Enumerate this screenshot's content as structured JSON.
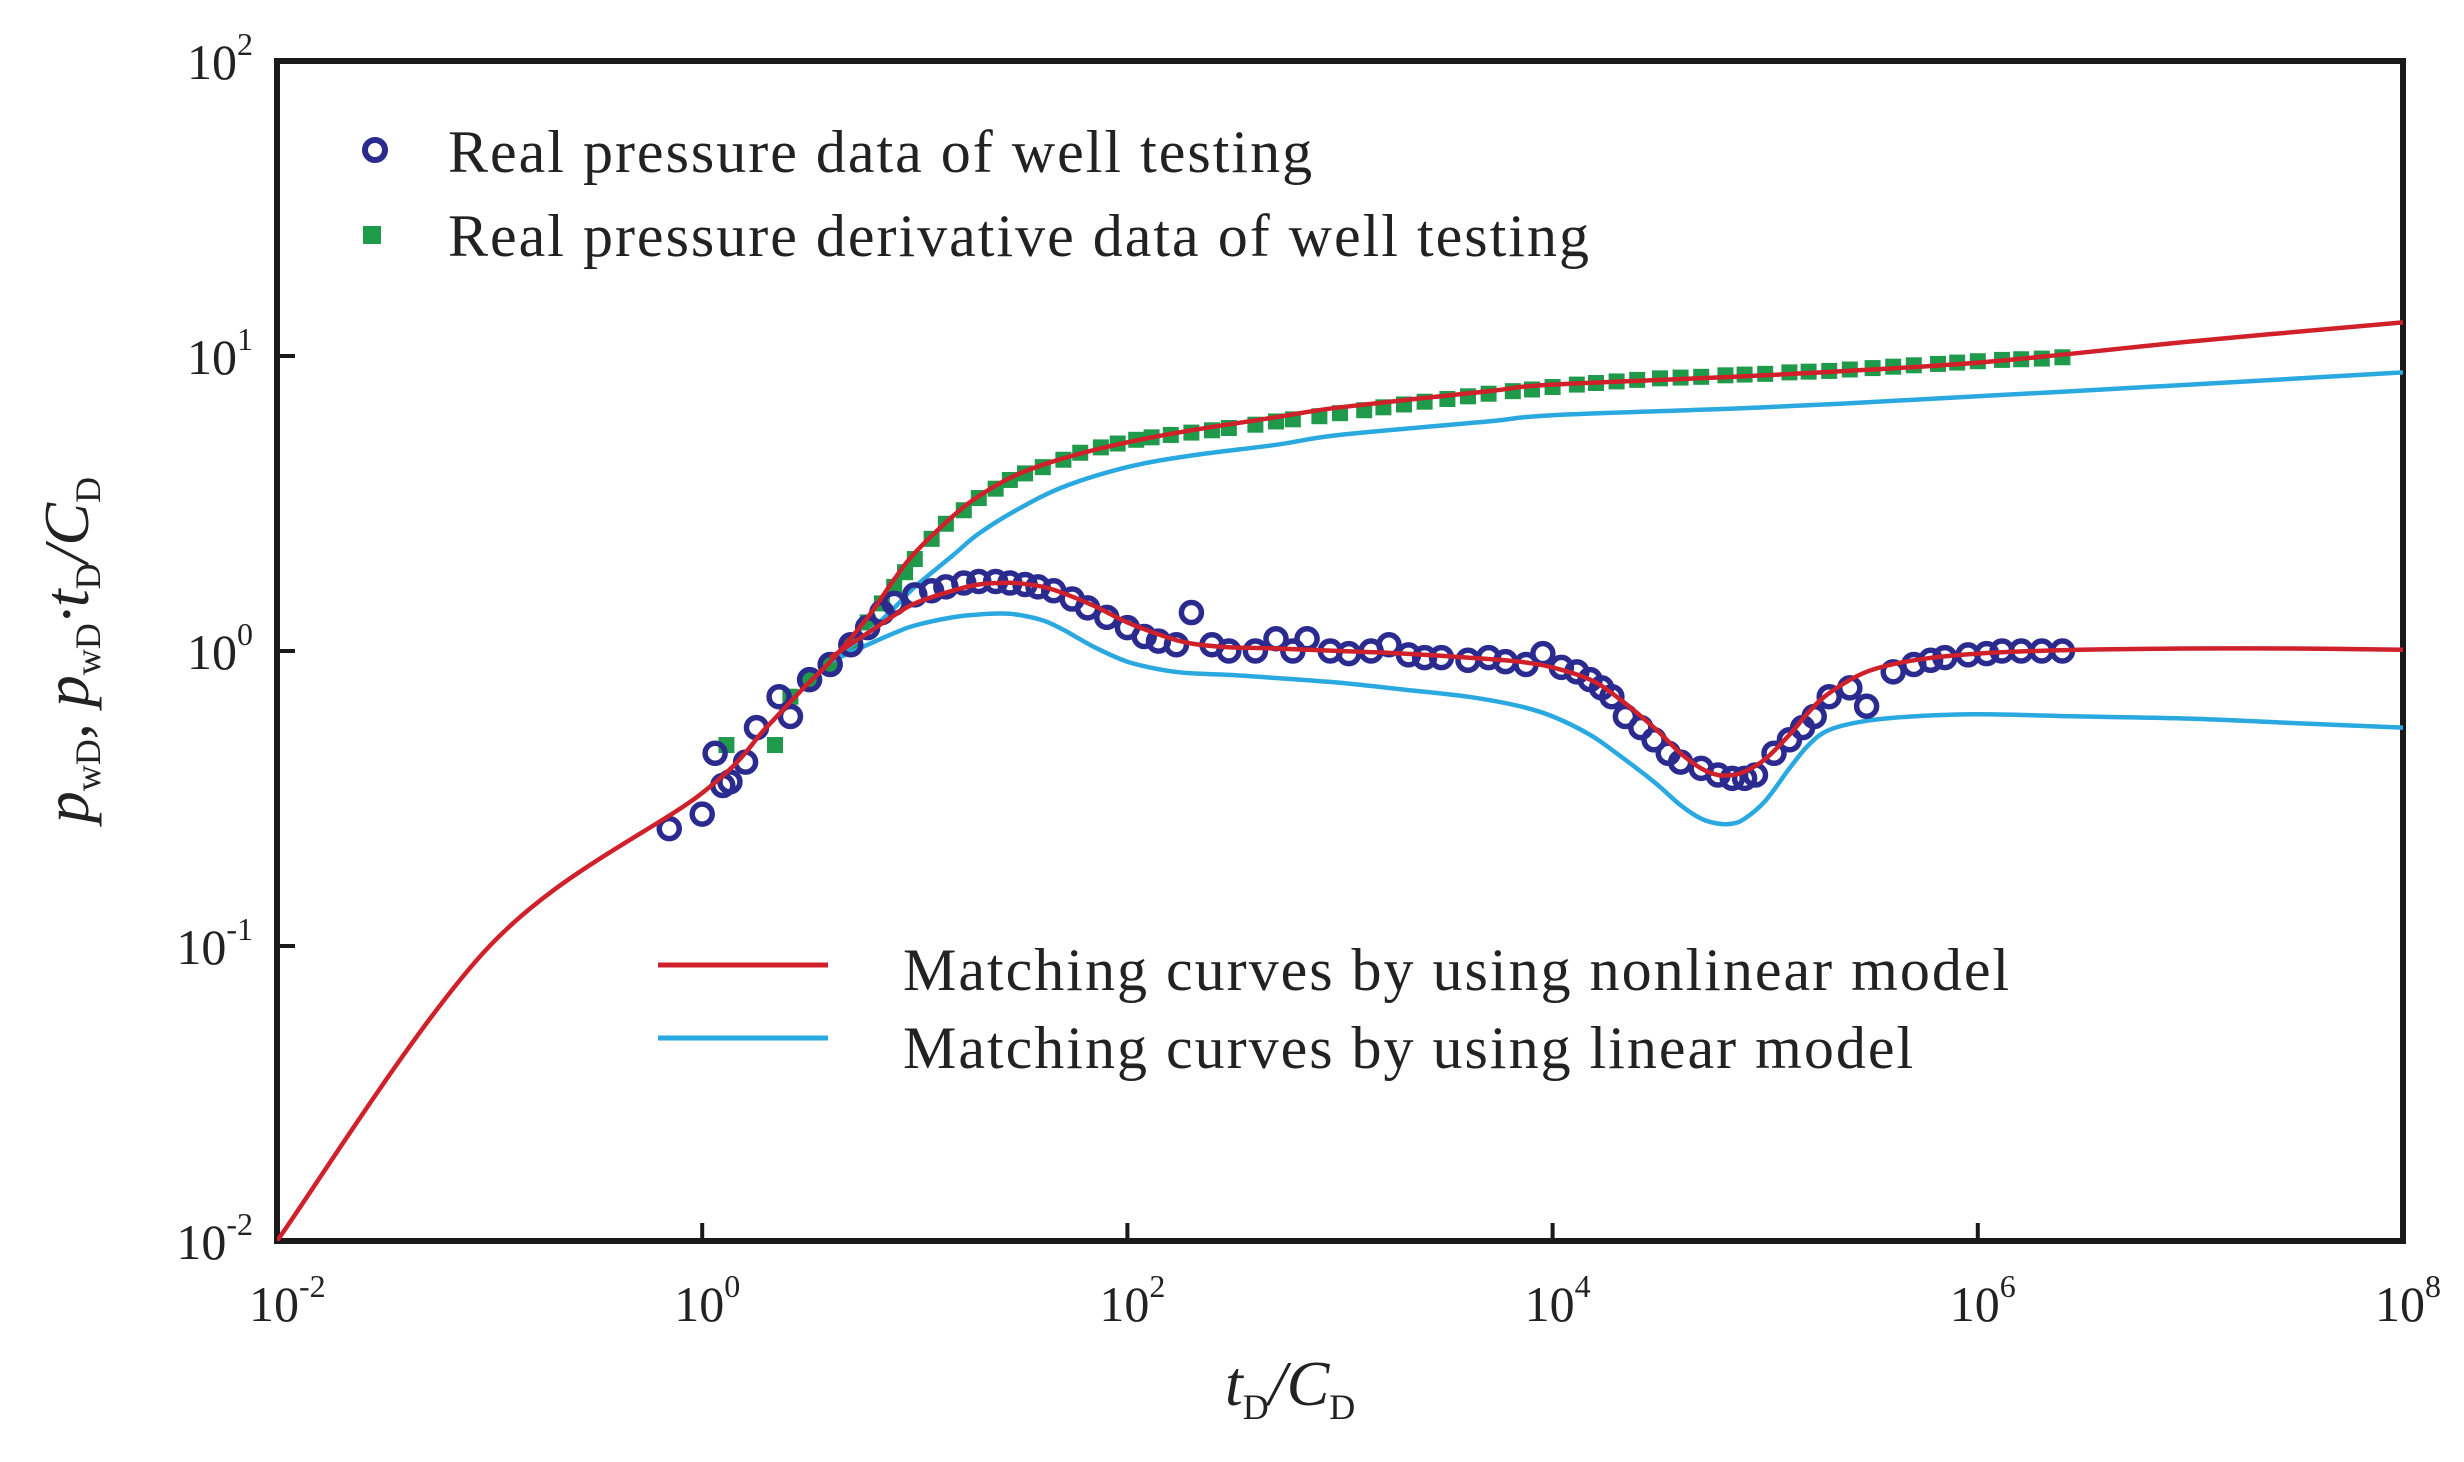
{
  "chart_data": {
    "type": "scatter",
    "title": "",
    "xlabel": {
      "main": "t",
      "sub1": "D",
      "slash": "/C",
      "sub2": "D"
    },
    "ylabel": {
      "p1": "p",
      "s1": "wD",
      "sep": ", ",
      "p2": "p",
      "s2": "wD",
      "dot": "·t",
      "s3": "D",
      "slash": "/C",
      "s4": "D"
    },
    "x_scale": "log",
    "y_scale": "log",
    "xlim": [
      0.01,
      100000000
    ],
    "ylim": [
      0.01,
      100
    ],
    "grid": false,
    "x_ticks": [
      {
        "value": 0.01,
        "base": "10",
        "exp": "-2"
      },
      {
        "value": 1,
        "base": "10",
        "exp": "0"
      },
      {
        "value": 100,
        "base": "10",
        "exp": "2"
      },
      {
        "value": 10000,
        "base": "10",
        "exp": "4"
      },
      {
        "value": 1000000,
        "base": "10",
        "exp": "6"
      },
      {
        "value": 100000000,
        "base": "10",
        "exp": "8"
      }
    ],
    "y_ticks": [
      {
        "value": 0.01,
        "base": "10",
        "exp": "-2"
      },
      {
        "value": 0.1,
        "base": "10",
        "exp": "-1"
      },
      {
        "value": 1,
        "base": "10",
        "exp": "0"
      },
      {
        "value": 10,
        "base": "10",
        "exp": "1"
      },
      {
        "value": 100,
        "base": "10",
        "exp": "2"
      }
    ],
    "legend_top": {
      "placement": "top-left",
      "entries": [
        {
          "label": "Real pressure data of well testing",
          "marker": "circle",
          "color": "#2a2a8f"
        },
        {
          "label": "Real pressure derivative data of well testing",
          "marker": "square",
          "color": "#1f9a4a"
        }
      ]
    },
    "legend_bottom": {
      "placement": "lower-center",
      "entries": [
        {
          "label": "Matching curves by using nonlinear model",
          "color": "#d0202a"
        },
        {
          "label": "Matching curves by using linear model",
          "color": "#2aa8e0"
        }
      ]
    },
    "series": [
      {
        "name": "Real pressure data of well testing",
        "kind": "scatter",
        "marker": "circle",
        "color": "#2a2a8f",
        "x": [
          0.7,
          1.0,
          1.15,
          1.25,
          1.35,
          1.6,
          1.8,
          2.3,
          2.6,
          3.2,
          4,
          5,
          6,
          7,
          8,
          10,
          12,
          14,
          17,
          20,
          24,
          28,
          33,
          38,
          45,
          55,
          65,
          80,
          100,
          120,
          140,
          170,
          200,
          250,
          300,
          400,
          500,
          600,
          700,
          900,
          1100,
          1400,
          1700,
          2100,
          2500,
          3000,
          4000,
          5000,
          6000,
          7500,
          9000,
          11000,
          13000,
          15000,
          17000,
          19000,
          22000,
          26000,
          30000,
          35000,
          40000,
          50000,
          60000,
          70000,
          80000,
          90000,
          110000,
          130000,
          150000,
          170000,
          200000,
          250000,
          300000,
          400000,
          500000,
          600000,
          700000,
          900000,
          1100000,
          1300000,
          1600000,
          2000000,
          2500000
        ],
        "y": [
          0.25,
          0.28,
          0.45,
          0.35,
          0.36,
          0.42,
          0.55,
          0.7,
          0.6,
          0.8,
          0.9,
          1.05,
          1.2,
          1.35,
          1.45,
          1.55,
          1.6,
          1.65,
          1.7,
          1.72,
          1.72,
          1.7,
          1.68,
          1.65,
          1.6,
          1.5,
          1.4,
          1.3,
          1.2,
          1.12,
          1.08,
          1.05,
          1.35,
          1.05,
          1.0,
          1.0,
          1.1,
          1.0,
          1.1,
          1.0,
          0.98,
          1.0,
          1.05,
          0.97,
          0.95,
          0.95,
          0.93,
          0.95,
          0.92,
          0.9,
          0.98,
          0.88,
          0.85,
          0.8,
          0.75,
          0.7,
          0.6,
          0.55,
          0.5,
          0.45,
          0.42,
          0.4,
          0.38,
          0.37,
          0.37,
          0.38,
          0.45,
          0.5,
          0.55,
          0.6,
          0.7,
          0.75,
          0.65,
          0.85,
          0.9,
          0.93,
          0.95,
          0.97,
          0.98,
          1.0,
          1.0,
          1.0,
          1.0
        ]
      },
      {
        "name": "Real pressure derivative data of well testing",
        "kind": "scatter",
        "marker": "square",
        "color": "#1f9a4a",
        "x": [
          1.3,
          2.2,
          2.6,
          3.2,
          4,
          5,
          6,
          7,
          8,
          9,
          10,
          12,
          14,
          17,
          20,
          24,
          28,
          33,
          40,
          50,
          60,
          75,
          90,
          110,
          130,
          160,
          200,
          250,
          300,
          400,
          500,
          600,
          800,
          1000,
          1300,
          1600,
          2000,
          2500,
          3200,
          4000,
          5000,
          6500,
          8000,
          10000,
          13000,
          16000,
          20000,
          25000,
          32000,
          40000,
          50000,
          65000,
          80000,
          100000,
          130000,
          160000,
          200000,
          250000,
          320000,
          400000,
          500000,
          650000,
          800000,
          1000000,
          1300000,
          1600000,
          2000000,
          2500000
        ],
        "y": [
          0.48,
          0.48,
          0.7,
          0.8,
          0.9,
          1.05,
          1.25,
          1.45,
          1.65,
          1.85,
          2.05,
          2.4,
          2.7,
          3.0,
          3.3,
          3.55,
          3.8,
          4.0,
          4.2,
          4.45,
          4.7,
          4.9,
          5.05,
          5.2,
          5.3,
          5.4,
          5.5,
          5.6,
          5.7,
          5.85,
          6.0,
          6.1,
          6.25,
          6.4,
          6.55,
          6.7,
          6.85,
          7.0,
          7.15,
          7.3,
          7.45,
          7.6,
          7.7,
          7.85,
          8.0,
          8.1,
          8.2,
          8.3,
          8.4,
          8.45,
          8.5,
          8.6,
          8.65,
          8.7,
          8.8,
          8.85,
          8.9,
          9.0,
          9.1,
          9.2,
          9.3,
          9.4,
          9.5,
          9.6,
          9.7,
          9.75,
          9.8,
          9.9
        ]
      },
      {
        "name": "Matching curves by using nonlinear model",
        "kind": "line",
        "color": "#d0202a",
        "segments": [
          {
            "x": [
              0.01,
              0.1,
              1,
              2,
              3,
              4,
              6,
              8,
              10,
              15,
              20,
              30,
              50,
              100,
              200,
              500,
              1000,
              5000,
              10000,
              100000,
              1000000,
              10000000,
              100000000
            ],
            "y": [
              0.01,
              0.1,
              0.33,
              0.55,
              0.75,
              0.92,
              1.3,
              1.75,
              2.15,
              2.85,
              3.35,
              3.95,
              4.5,
              5.1,
              5.6,
              6.2,
              6.7,
              7.6,
              8.0,
              8.6,
              9.5,
              11.2,
              13.0
            ]
          },
          {
            "x": [
              4,
              6,
              8,
              10,
              15,
              20,
              25,
              30,
              40,
              50,
              70,
              100,
              150,
              200,
              300,
              500,
              1000,
              2000,
              4000,
              7000,
              10000,
              15000,
              20000,
              30000,
              40000,
              50000,
              60000,
              70000,
              80000,
              100000,
              130000,
              160000,
              200000,
              300000,
              500000,
              1000000,
              3000000,
              10000000,
              30000000,
              100000000
            ],
            "y": [
              0.95,
              1.15,
              1.32,
              1.45,
              1.6,
              1.68,
              1.7,
              1.7,
              1.65,
              1.57,
              1.42,
              1.25,
              1.12,
              1.06,
              1.03,
              1.02,
              1.0,
              0.98,
              0.95,
              0.92,
              0.88,
              0.8,
              0.7,
              0.55,
              0.45,
              0.4,
              0.38,
              0.38,
              0.39,
              0.43,
              0.52,
              0.62,
              0.72,
              0.85,
              0.93,
              0.98,
              1.01,
              1.02,
              1.02,
              1.01
            ]
          }
        ]
      },
      {
        "name": "Matching curves by using linear model",
        "kind": "line",
        "color": "#2aa8e0",
        "segments": [
          {
            "x": [
              4,
              6,
              8,
              10,
              15,
              20,
              30,
              50,
              100,
              200,
              500,
              1000,
              5000,
              10000,
              100000,
              1000000,
              10000000,
              100000000
            ],
            "y": [
              0.92,
              1.15,
              1.4,
              1.65,
              2.1,
              2.5,
              3.0,
              3.6,
              4.2,
              4.6,
              5.0,
              5.4,
              6.0,
              6.3,
              6.7,
              7.3,
              8.0,
              8.8
            ]
          },
          {
            "x": [
              4,
              6,
              8,
              10,
              15,
              20,
              25,
              30,
              40,
              50,
              70,
              100,
              150,
              200,
              300,
              500,
              1000,
              2000,
              4000,
              7000,
              10000,
              15000,
              20000,
              30000,
              40000,
              50000,
              60000,
              70000,
              80000,
              100000,
              130000,
              160000,
              200000,
              300000,
              500000,
              1000000,
              3000000,
              10000000,
              30000000,
              100000000
            ],
            "y": [
              0.92,
              1.05,
              1.15,
              1.22,
              1.3,
              1.33,
              1.34,
              1.33,
              1.27,
              1.18,
              1.03,
              0.92,
              0.86,
              0.84,
              0.83,
              0.81,
              0.78,
              0.74,
              0.7,
              0.65,
              0.6,
              0.52,
              0.45,
              0.36,
              0.3,
              0.27,
              0.26,
              0.26,
              0.27,
              0.31,
              0.4,
              0.48,
              0.54,
              0.58,
              0.6,
              0.61,
              0.6,
              0.59,
              0.57,
              0.55
            ]
          }
        ]
      }
    ]
  }
}
